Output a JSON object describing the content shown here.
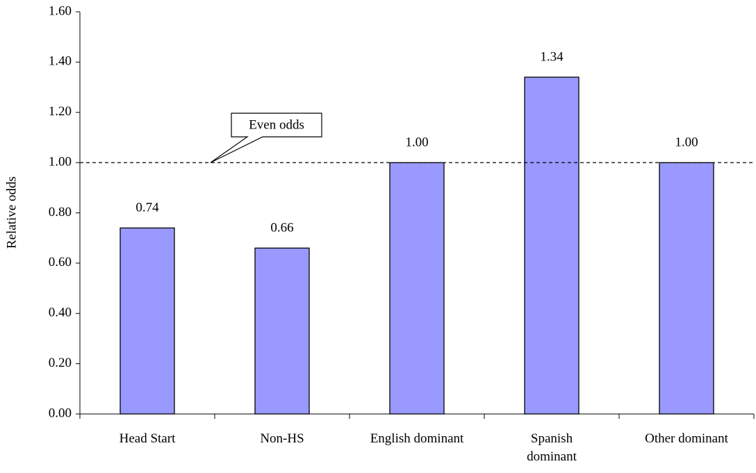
{
  "chart_data": {
    "type": "bar",
    "y_label": "Relative odds",
    "categories": [
      "Head Start",
      "Non-HS",
      "English dominant",
      "Spanish\ndominant",
      "Other dominant"
    ],
    "values": [
      0.74,
      0.66,
      1.0,
      1.34,
      1.0
    ],
    "value_labels": [
      "0.74",
      "0.66",
      "1.00",
      "1.34",
      "1.00"
    ],
    "color": "#9999ff",
    "ylim": [
      0,
      1.6
    ],
    "yticks": [
      {
        "value": 0,
        "label": "0.00"
      },
      {
        "value": 0.2,
        "label": "0.20"
      },
      {
        "value": 0.4,
        "label": "0.40"
      },
      {
        "value": 0.6,
        "label": "0.60"
      },
      {
        "value": 0.8,
        "label": "0.80"
      },
      {
        "value": 1,
        "label": "1.00"
      },
      {
        "value": 1.2,
        "label": "1.20"
      },
      {
        "value": 1.4,
        "label": "1.40"
      },
      {
        "value": 1.6,
        "label": "1.60"
      }
    ],
    "reference_line": {
      "value": 1,
      "label": "Even odds"
    },
    "grid": false
  }
}
